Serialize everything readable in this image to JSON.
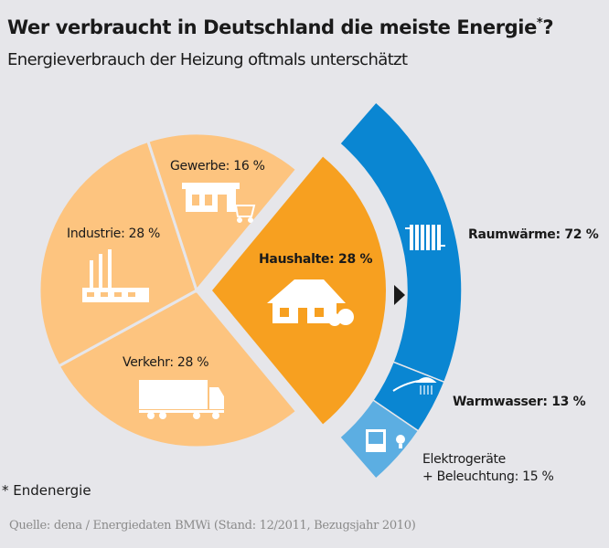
{
  "title": "Wer verbraucht in Deutschland die meiste Energie",
  "title_marker": "*",
  "title_end": "?",
  "subtitle": "Energieverbrauch der Heizung oftmals unterschätzt",
  "footnote": "* Endenergie",
  "source": "Quelle: dena / Energiedaten BMWi  (Stand: 12/2011, Bezugsjahr 2010)",
  "colors": {
    "background": "#e6e6ea",
    "sector": "#fdc47f",
    "haushalte": "#f7a020",
    "blue": "#0a86d2",
    "light_blue": "#5caee2"
  },
  "chart_data": [
    {
      "type": "pie",
      "unit": "%",
      "categories": [
        "Haushalte",
        "Verkehr",
        "Industrie",
        "Gewerbe"
      ],
      "values": [
        28,
        28,
        28,
        16
      ],
      "labels": [
        "Haushalte: 28 %",
        "Verkehr: 28 %",
        "Industrie: 28 %",
        "Gewerbe: 16 %"
      ],
      "highlighted": "Haushalte",
      "icons": [
        "house-icon",
        "truck-icon",
        "factory-icon",
        "shop-icon"
      ]
    },
    {
      "type": "pie",
      "style": "arc breakdown of Haushalte",
      "unit": "%",
      "categories": [
        "Raumwärme",
        "Warmwasser",
        "Elektrogeräte + Beleuchtung"
      ],
      "values": [
        72,
        13,
        15
      ],
      "labels": [
        "Raumwärme: 72 %",
        "Warmwasser: 13 %"
      ],
      "label_elektro_line1": "Elektrogeräte",
      "label_elektro_line2": "+ Beleuchtung: 15 %",
      "icons": [
        "radiator-icon",
        "shower-icon",
        "tv-and-bulb-icon"
      ]
    }
  ]
}
